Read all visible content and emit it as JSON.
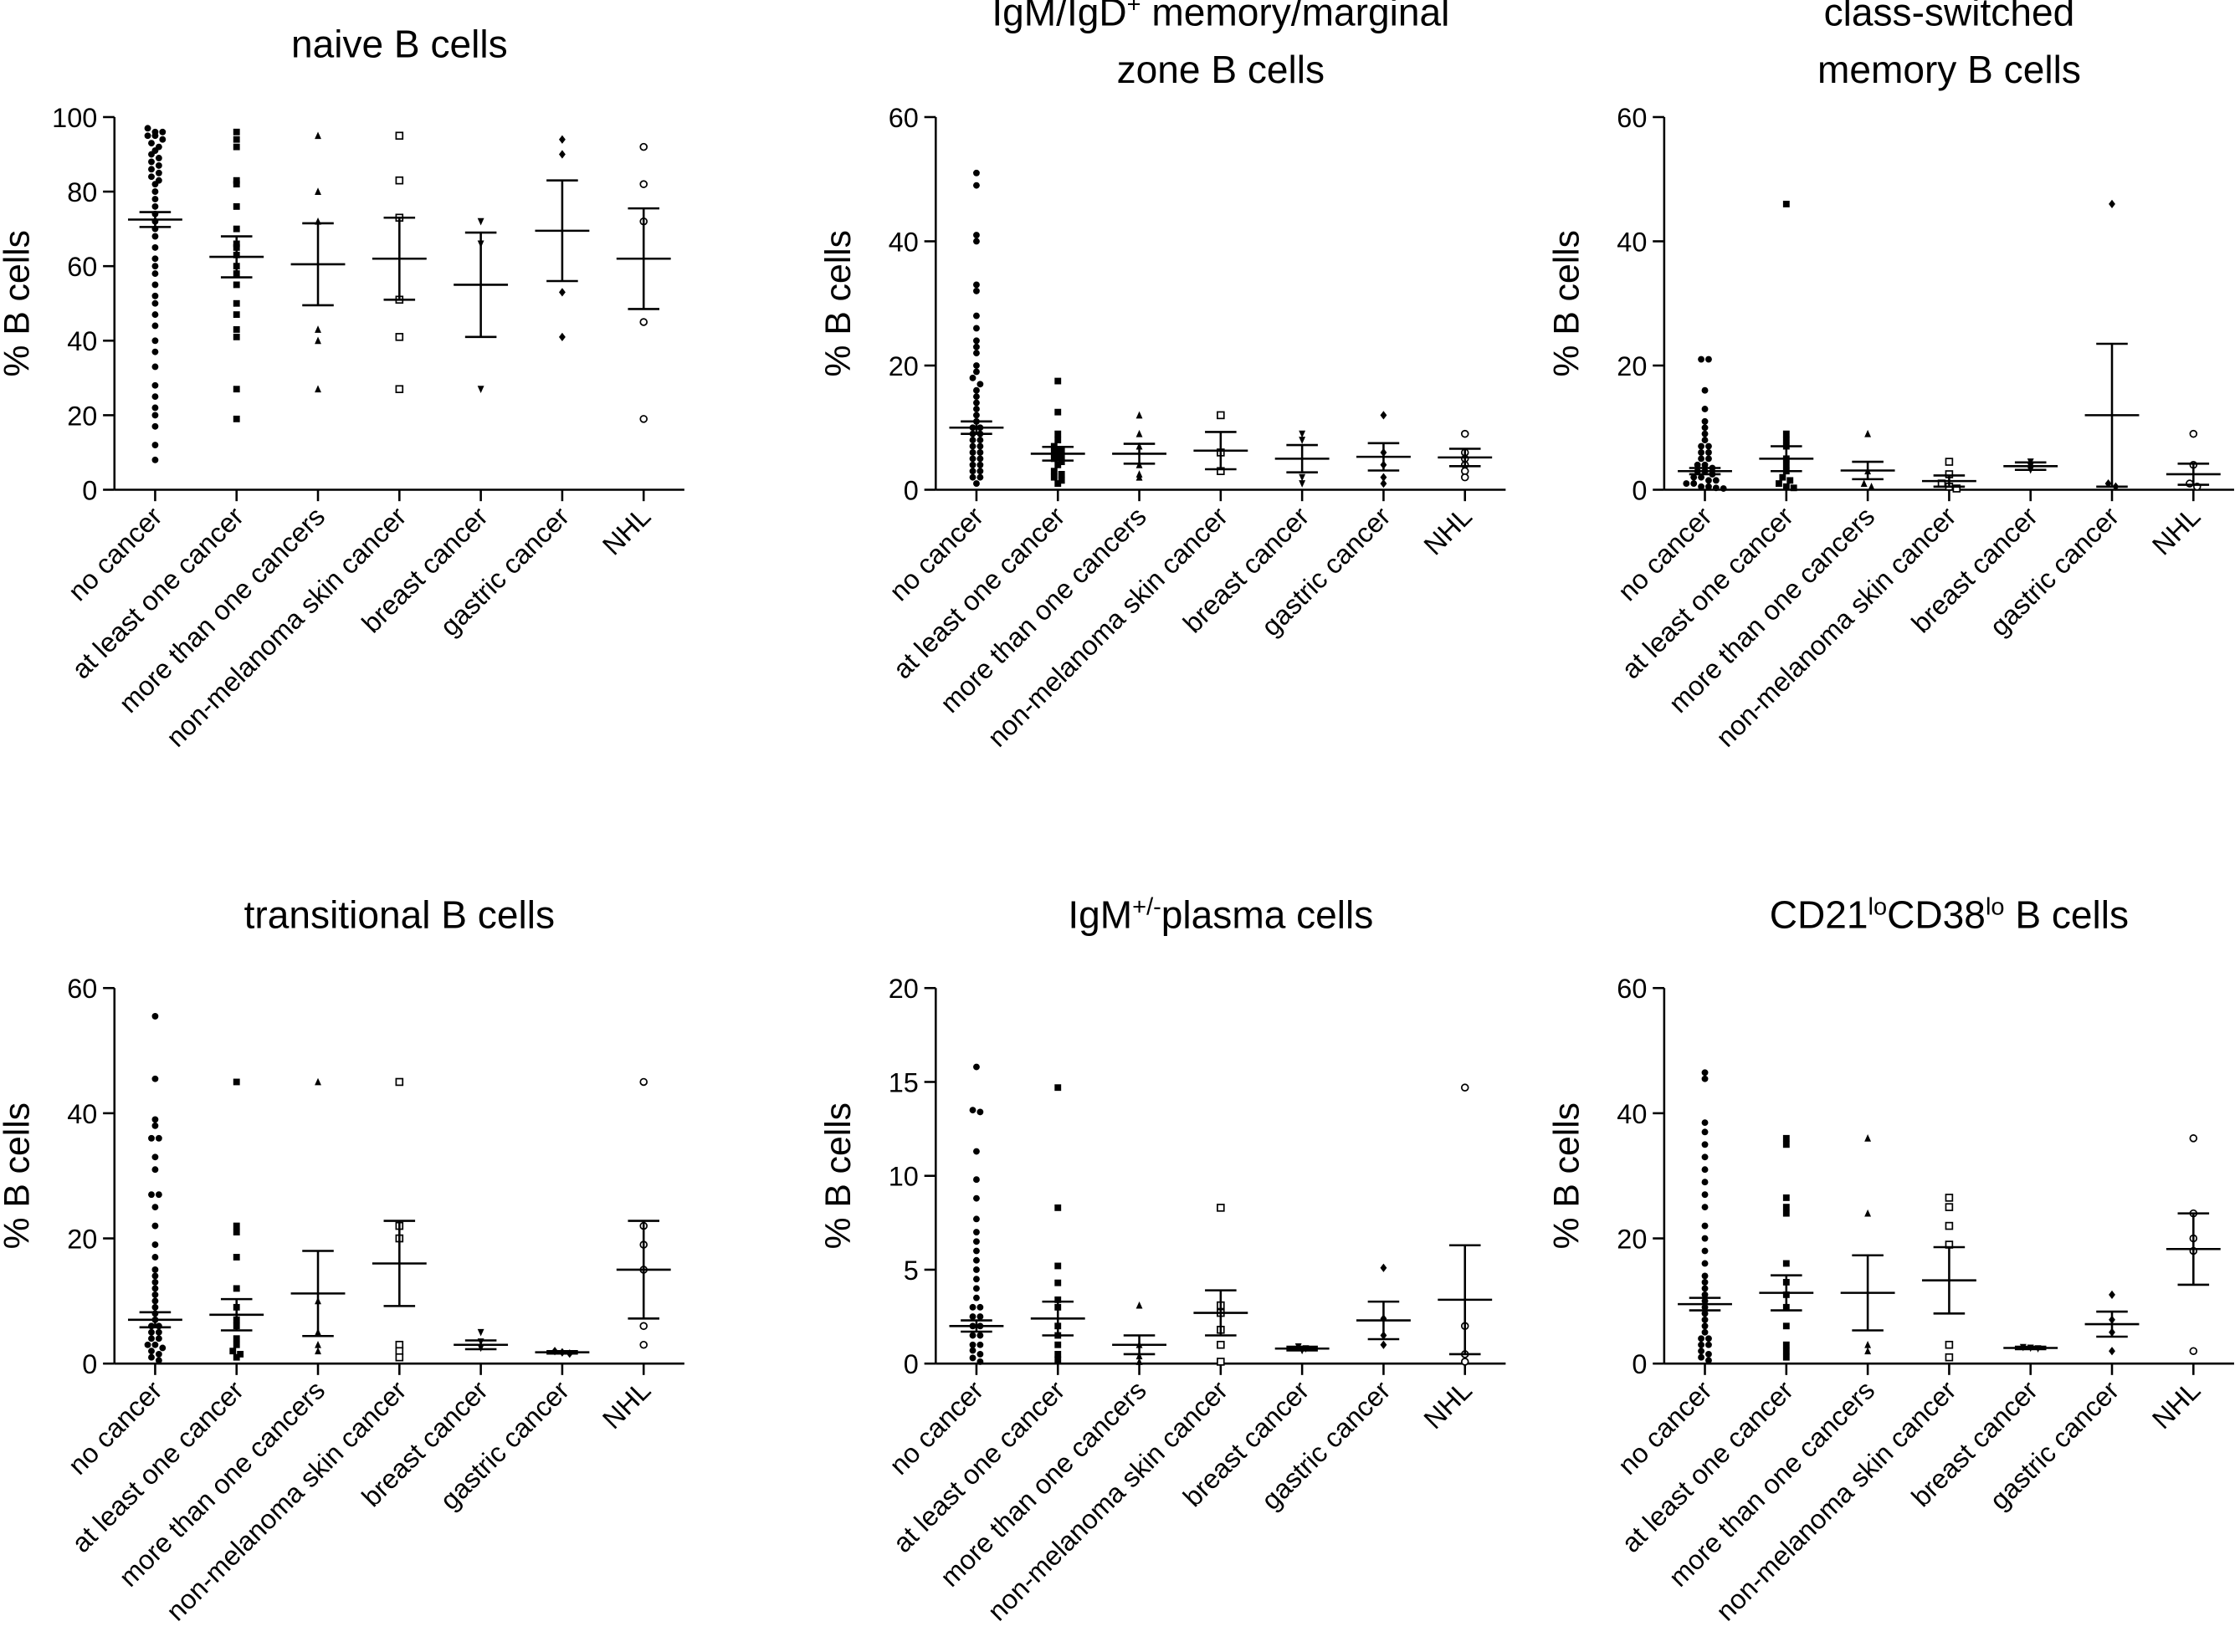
{
  "chart_data": [
    {
      "type": "dot",
      "title": [
        [
          {
            "text": "naive B cells"
          }
        ]
      ],
      "y_label": "% B cells",
      "categories": [
        "no cancer",
        "at least one cancer",
        "more than one cancers",
        "non-melanoma skin cancer",
        "breast cancer",
        "gastric cancer",
        "NHL"
      ],
      "markers": [
        "circle",
        "square",
        "triangle",
        "square-open",
        "triangle-down",
        "diamond",
        "circle-open"
      ],
      "ylim": [
        0,
        100
      ],
      "yticks": [
        0,
        20,
        40,
        60,
        80,
        100
      ],
      "groups": [
        {
          "points": [
            97,
            96,
            96,
            95,
            95,
            94,
            93,
            92,
            91,
            90,
            89,
            88,
            87,
            86,
            85,
            84,
            83,
            82,
            80,
            78,
            76,
            74,
            72,
            70,
            68,
            65,
            62,
            60,
            58,
            55,
            52,
            50,
            47,
            44,
            40,
            37,
            33,
            28,
            25,
            22,
            20,
            17,
            12,
            8
          ],
          "mean": 72.5,
          "sem": 2
        },
        {
          "points": [
            96,
            94,
            92,
            83,
            82,
            76,
            70,
            66,
            65,
            63,
            60,
            58,
            55,
            50,
            47,
            43,
            41,
            27,
            19
          ],
          "mean": 62.5,
          "sem": 5.5
        },
        {
          "points": [
            95,
            80,
            72,
            43,
            40,
            27
          ],
          "mean": 60.5,
          "sem": 11
        },
        {
          "points": [
            95,
            83,
            73,
            51,
            41,
            27
          ],
          "mean": 62,
          "sem": 11
        },
        {
          "points": [
            72,
            66,
            27
          ],
          "mean": 55,
          "sem": 14
        },
        {
          "points": [
            94,
            90,
            53,
            41
          ],
          "mean": 69.5,
          "sem": 13.5
        },
        {
          "points": [
            92,
            82,
            72,
            45,
            19
          ],
          "mean": 62,
          "sem": 13.5
        }
      ]
    },
    {
      "type": "dot",
      "title": [
        [
          {
            "text": "IgM/IgD"
          },
          {
            "text": "+",
            "sup": true
          },
          {
            "text": " memory/marginal"
          }
        ],
        [
          {
            "text": "zone B cells"
          }
        ]
      ],
      "y_label": "% B cells",
      "categories": [
        "no cancer",
        "at least one cancer",
        "more than one cancers",
        "non-melanoma skin cancer",
        "breast cancer",
        "gastric cancer",
        "NHL"
      ],
      "markers": [
        "circle",
        "square",
        "triangle",
        "square-open",
        "triangle-down",
        "diamond",
        "circle-open"
      ],
      "ylim": [
        0,
        60
      ],
      "yticks": [
        0,
        20,
        40,
        60
      ],
      "groups": [
        {
          "points": [
            51,
            49,
            41,
            40,
            33,
            32,
            28,
            26,
            24,
            23,
            22,
            20,
            19,
            18,
            17,
            16,
            15,
            14,
            13,
            12,
            11,
            10,
            10,
            9,
            9,
            8,
            8,
            7,
            7,
            6,
            6,
            5,
            5,
            4,
            4,
            3,
            3,
            2,
            2,
            1
          ],
          "mean": 10,
          "sem": 1
        },
        {
          "points": [
            17.5,
            12.5,
            9,
            8,
            7,
            6.5,
            6,
            5.5,
            5,
            4.5,
            4,
            3,
            2.5,
            2,
            1.5,
            1
          ],
          "mean": 5.8,
          "sem": 1.1
        },
        {
          "points": [
            12,
            9,
            7,
            4,
            2.5,
            2
          ],
          "mean": 5.8,
          "sem": 1.6
        },
        {
          "points": [
            12,
            6,
            3
          ],
          "mean": 6.3,
          "sem": 3
        },
        {
          "points": [
            9,
            8,
            2,
            1
          ],
          "mean": 5,
          "sem": 2.2
        },
        {
          "points": [
            12,
            6,
            4,
            2,
            1
          ],
          "mean": 5.3,
          "sem": 2.2
        },
        {
          "points": [
            9,
            6,
            5,
            4,
            3,
            2
          ],
          "mean": 5.2,
          "sem": 1.4
        }
      ]
    },
    {
      "type": "dot",
      "title": [
        [
          {
            "text": "class-switched"
          }
        ],
        [
          {
            "text": "memory B cells"
          }
        ]
      ],
      "y_label": "% B cells",
      "categories": [
        "no cancer",
        "at least one cancer",
        "more than one cancers",
        "non-melanoma skin cancer",
        "breast cancer",
        "gastric cancer",
        "NHL"
      ],
      "markers": [
        "circle",
        "square",
        "triangle",
        "square-open",
        "triangle-down",
        "diamond",
        "circle-open"
      ],
      "ylim": [
        0,
        60
      ],
      "yticks": [
        0,
        20,
        40,
        60
      ],
      "groups": [
        {
          "points": [
            21,
            21,
            16,
            13,
            11,
            10,
            9,
            8,
            7,
            7,
            6,
            6,
            5,
            5,
            4,
            4,
            3.5,
            3,
            3,
            2.5,
            2,
            2,
            1.5,
            1.5,
            1,
            1,
            0.5,
            0.5,
            0.3,
            0.2
          ],
          "mean": 3,
          "sem": 0.5
        },
        {
          "points": [
            46,
            9,
            8,
            7,
            5,
            4,
            3,
            2,
            1.5,
            1,
            0.5,
            0.3
          ],
          "mean": 5,
          "sem": 2
        },
        {
          "points": [
            9,
            3,
            1,
            0.5
          ],
          "mean": 3.1,
          "sem": 1.4
        },
        {
          "points": [
            4.5,
            2.5,
            1,
            0.5,
            0.2
          ],
          "mean": 1.4,
          "sem": 0.9
        },
        {
          "points": [
            4.5,
            3.8,
            3.2
          ],
          "mean": 3.8,
          "sem": 0.6
        },
        {
          "points": [
            46,
            1,
            0.5
          ],
          "mean": 12,
          "sem": 11.5
        },
        {
          "points": [
            9,
            4,
            1,
            0.5
          ],
          "mean": 2.5,
          "sem": 1.7
        }
      ]
    },
    {
      "type": "dot",
      "title": [
        [
          {
            "text": "transitional B cells"
          }
        ]
      ],
      "y_label": "% B cells",
      "categories": [
        "no cancer",
        "at least one cancer",
        "more than one cancers",
        "non-melanoma skin cancer",
        "breast cancer",
        "gastric cancer",
        "NHL"
      ],
      "markers": [
        "circle",
        "square",
        "triangle",
        "square-open",
        "triangle-down",
        "diamond",
        "circle-open"
      ],
      "ylim": [
        0,
        60
      ],
      "yticks": [
        0,
        20,
        40,
        60
      ],
      "groups": [
        {
          "points": [
            55.5,
            45.5,
            39,
            38,
            36,
            36,
            33,
            31,
            27,
            27,
            25,
            22,
            19,
            17,
            15,
            14,
            13,
            12,
            11,
            10,
            9,
            8,
            7,
            6,
            6,
            5,
            5,
            4,
            4,
            3,
            3,
            2.5,
            2,
            1.5,
            1,
            0.5
          ],
          "mean": 7,
          "sem": 1.2
        },
        {
          "points": [
            45,
            22,
            21,
            17,
            12,
            9,
            7,
            6,
            4,
            3,
            2,
            1.5,
            1
          ],
          "mean": 7.8,
          "sem": 2.5
        },
        {
          "points": [
            45,
            10,
            5,
            3,
            2
          ],
          "mean": 11.2,
          "sem": 6.8
        },
        {
          "points": [
            45,
            22,
            20,
            3,
            2,
            1
          ],
          "mean": 16,
          "sem": 6.8
        },
        {
          "points": [
            5,
            3.5,
            2.5
          ],
          "mean": 3,
          "sem": 0.7
        },
        {
          "points": [
            2,
            1.8,
            1.6
          ],
          "mean": 1.8,
          "sem": 0.2
        },
        {
          "points": [
            45,
            22,
            19,
            15,
            6,
            3
          ],
          "mean": 15,
          "sem": 7.8
        }
      ]
    },
    {
      "type": "dot",
      "title": [
        [
          {
            "text": "IgM"
          },
          {
            "text": "+/-",
            "sup": true
          },
          {
            "text": "plasma cells"
          }
        ]
      ],
      "y_label": "% B cells",
      "categories": [
        "no cancer",
        "at least one cancer",
        "more than one cancers",
        "non-melanoma skin cancer",
        "breast cancer",
        "gastric cancer",
        "NHL"
      ],
      "markers": [
        "circle",
        "square",
        "triangle",
        "square-open",
        "triangle-down",
        "diamond",
        "circle-open"
      ],
      "ylim": [
        0,
        20
      ],
      "yticks": [
        0,
        5,
        10,
        15,
        20
      ],
      "groups": [
        {
          "points": [
            15.8,
            13.5,
            13.4,
            11.3,
            9.8,
            8.8,
            7.7,
            7,
            6.5,
            6,
            5.5,
            5,
            4.5,
            4,
            3.5,
            3,
            3,
            2.5,
            2.5,
            2,
            2,
            1.5,
            1.5,
            1,
            1,
            0.7,
            0.5,
            0.3,
            0.1
          ],
          "mean": 2,
          "sem": 0.3
        },
        {
          "points": [
            14.7,
            8.3,
            5.2,
            4.3,
            3.4,
            3,
            2,
            1.5,
            1,
            0.5,
            0.2
          ],
          "mean": 2.4,
          "sem": 0.9
        },
        {
          "points": [
            3.1,
            1,
            0.4,
            0.1
          ],
          "mean": 1,
          "sem": 0.5
        },
        {
          "points": [
            8.3,
            3.1,
            2.7,
            1.8,
            1,
            0.1
          ],
          "mean": 2.7,
          "sem": 1.2
        },
        {
          "points": [
            0.9,
            0.8,
            0.7
          ],
          "mean": 0.8,
          "sem": 0.1
        },
        {
          "points": [
            5.1,
            2.4,
            1.5,
            1
          ],
          "mean": 2.3,
          "sem": 1
        },
        {
          "points": [
            14.7,
            2,
            0.5,
            0.1
          ],
          "mean": 3.4,
          "sem": 2.9
        }
      ]
    },
    {
      "type": "dot",
      "title": [
        [
          {
            "text": "CD21"
          },
          {
            "text": "lo",
            "sup": true
          },
          {
            "text": "CD38"
          },
          {
            "text": "lo",
            "sup": true
          },
          {
            "text": " B cells"
          }
        ]
      ],
      "y_label": "% B cells",
      "categories": [
        "no cancer",
        "at least one cancer",
        "more than one cancers",
        "non-melanoma skin cancer",
        "breast cancer",
        "gastric cancer",
        "NHL"
      ],
      "markers": [
        "circle",
        "square",
        "triangle",
        "square-open",
        "triangle-down",
        "diamond",
        "circle-open"
      ],
      "ylim": [
        0,
        60
      ],
      "yticks": [
        0,
        20,
        40,
        60
      ],
      "groups": [
        {
          "points": [
            46.5,
            45.5,
            38.5,
            37,
            35,
            33,
            31,
            29,
            27,
            25,
            22,
            20,
            18,
            16,
            14,
            13,
            12,
            11,
            10,
            9,
            8,
            7,
            6,
            5,
            4,
            4,
            3,
            3,
            2,
            1.5,
            1,
            0.5
          ],
          "mean": 9.5,
          "sem": 1
        },
        {
          "points": [
            36,
            35,
            26.5,
            25,
            24,
            16,
            13,
            11,
            9,
            6,
            3,
            2,
            1
          ],
          "mean": 11.3,
          "sem": 2.8
        },
        {
          "points": [
            36,
            24,
            3,
            2
          ],
          "mean": 11.3,
          "sem": 6
        },
        {
          "points": [
            26.5,
            25,
            22,
            19,
            3,
            1
          ],
          "mean": 13.3,
          "sem": 5.3
        },
        {
          "points": [
            2.6,
            2.5,
            2.4
          ],
          "mean": 2.5,
          "sem": 0.2
        },
        {
          "points": [
            11,
            7,
            5,
            2
          ],
          "mean": 6.3,
          "sem": 2
        },
        {
          "points": [
            36,
            24,
            20,
            18,
            2
          ],
          "mean": 18.3,
          "sem": 5.7
        }
      ]
    }
  ]
}
